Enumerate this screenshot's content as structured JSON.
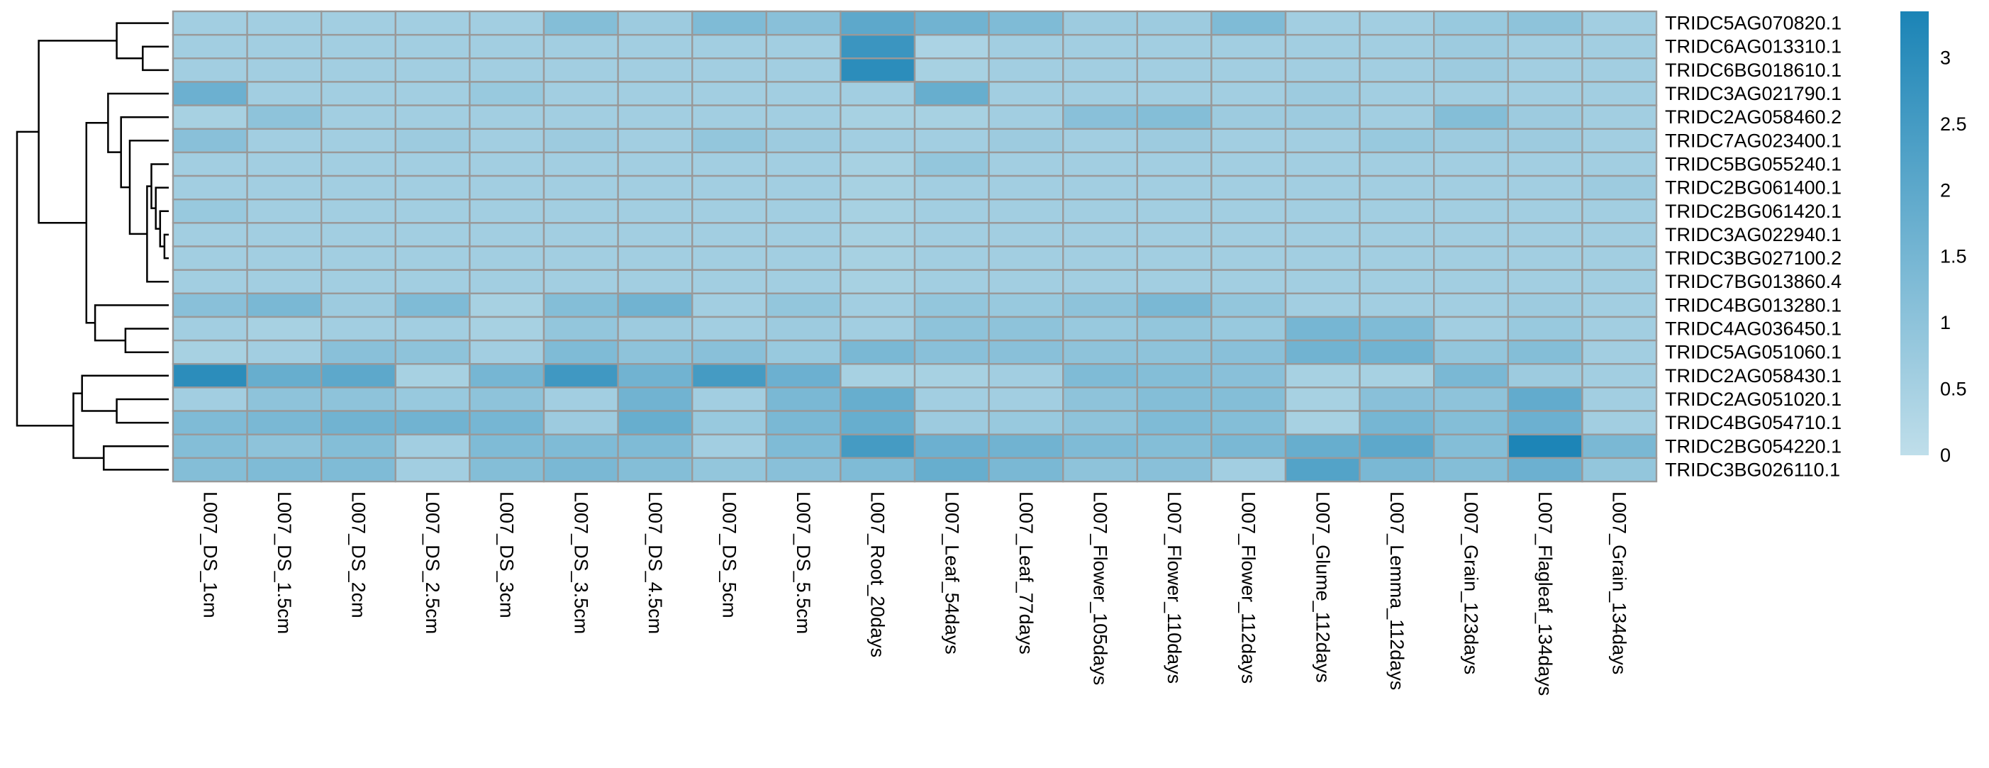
{
  "chart_data": {
    "type": "heatmap",
    "title": "",
    "xlabel": "",
    "ylabel": "",
    "columns": [
      "L007_DS_1cm",
      "L007_DS_1.5cm",
      "L007_DS_2cm",
      "L007_DS_2.5cm",
      "L007_DS_3cm",
      "L007_DS_3.5cm",
      "L007_DS_4.5cm",
      "L007_DS_5cm",
      "L007_DS_5.5cm",
      "L007_Root_20days",
      "L007_Leaf_54days",
      "L007_Leaf_77days",
      "L007_Flower_105days",
      "L007_Flower_110days",
      "L007_Flower_112days",
      "L007_Glume_112days",
      "L007_Lemma_112days",
      "L007_Grain_123days",
      "L007_Flagleaf_134days",
      "L007_Grain_134days"
    ],
    "rows": [
      "TRIDC5AG070820.1",
      "TRIDC6AG013310.1",
      "TRIDC6BG018610.1",
      "TRIDC3AG021790.1",
      "TRIDC2AG058460.2",
      "TRIDC7AG023400.1",
      "TRIDC5BG055240.1",
      "TRIDC2BG061400.1",
      "TRIDC2BG061420.1",
      "TRIDC3AG022940.1",
      "TRIDC3BG027100.2",
      "TRIDC7BG013860.4",
      "TRIDC4BG013280.1",
      "TRIDC4AG036450.1",
      "TRIDC5AG051060.1",
      "TRIDC2AG058430.1",
      "TRIDC2AG051020.1",
      "TRIDC4BG054710.1",
      "TRIDC2BG054220.1",
      "TRIDC3BG026110.1"
    ],
    "values": [
      [
        0.6,
        0.6,
        0.6,
        0.6,
        0.6,
        1.2,
        0.7,
        1.3,
        1.1,
        2.0,
        1.6,
        1.3,
        0.7,
        0.7,
        1.3,
        0.6,
        0.6,
        0.8,
        1.0,
        0.6
      ],
      [
        0.6,
        0.6,
        0.6,
        0.6,
        0.6,
        0.6,
        0.6,
        0.6,
        0.6,
        2.7,
        0.4,
        0.6,
        0.6,
        0.6,
        0.6,
        0.6,
        0.6,
        0.7,
        0.6,
        0.6
      ],
      [
        0.6,
        0.6,
        0.6,
        0.6,
        0.6,
        0.6,
        0.6,
        0.6,
        0.6,
        3.0,
        0.5,
        0.6,
        0.6,
        0.6,
        0.6,
        0.6,
        0.6,
        0.7,
        0.6,
        0.6
      ],
      [
        1.7,
        0.6,
        0.6,
        0.6,
        0.8,
        0.6,
        0.6,
        0.6,
        0.6,
        0.6,
        1.8,
        0.6,
        0.6,
        0.6,
        0.6,
        0.7,
        0.6,
        0.6,
        0.6,
        0.6
      ],
      [
        0.5,
        1.0,
        0.6,
        0.6,
        0.6,
        0.6,
        0.6,
        0.6,
        0.6,
        0.5,
        0.5,
        0.6,
        1.1,
        1.2,
        0.7,
        0.7,
        0.6,
        1.2,
        0.7,
        0.6
      ],
      [
        1.1,
        0.6,
        0.6,
        0.7,
        0.6,
        0.7,
        0.6,
        0.9,
        0.7,
        0.6,
        0.6,
        0.7,
        0.6,
        0.7,
        0.6,
        0.6,
        0.8,
        0.7,
        0.7,
        0.6
      ],
      [
        0.6,
        0.6,
        0.6,
        0.6,
        0.6,
        0.6,
        0.6,
        0.6,
        0.6,
        0.5,
        0.9,
        0.6,
        0.6,
        0.6,
        0.6,
        0.6,
        0.6,
        0.6,
        0.6,
        0.6
      ],
      [
        0.6,
        0.6,
        0.6,
        0.6,
        0.6,
        0.6,
        0.6,
        0.6,
        0.6,
        0.5,
        0.6,
        0.6,
        0.6,
        0.6,
        0.6,
        0.6,
        0.6,
        0.6,
        0.6,
        0.7
      ],
      [
        0.8,
        0.6,
        0.6,
        0.6,
        0.6,
        0.6,
        0.6,
        0.6,
        0.6,
        0.5,
        0.6,
        0.6,
        0.6,
        0.6,
        0.6,
        0.6,
        0.6,
        0.6,
        0.6,
        0.6
      ],
      [
        0.6,
        0.6,
        0.6,
        0.6,
        0.6,
        0.6,
        0.6,
        0.6,
        0.6,
        0.5,
        0.6,
        0.6,
        0.6,
        0.6,
        0.6,
        0.6,
        0.6,
        0.6,
        0.6,
        0.6
      ],
      [
        0.6,
        0.6,
        0.6,
        0.6,
        0.6,
        0.6,
        0.6,
        0.6,
        0.6,
        0.5,
        0.6,
        0.6,
        0.6,
        0.6,
        0.6,
        0.6,
        0.6,
        0.6,
        0.6,
        0.6
      ],
      [
        0.6,
        0.6,
        0.6,
        0.6,
        0.6,
        0.6,
        0.6,
        0.6,
        0.6,
        0.5,
        0.6,
        0.6,
        0.6,
        0.6,
        0.6,
        0.6,
        0.6,
        0.6,
        0.6,
        0.6
      ],
      [
        1.1,
        1.4,
        0.7,
        1.3,
        0.5,
        1.2,
        1.6,
        0.6,
        0.9,
        0.6,
        0.9,
        0.8,
        1.0,
        1.4,
        0.9,
        0.6,
        0.6,
        0.6,
        0.7,
        0.6
      ],
      [
        0.6,
        0.5,
        0.6,
        0.6,
        0.5,
        0.9,
        0.7,
        0.6,
        0.7,
        0.6,
        1.0,
        1.0,
        0.8,
        0.9,
        0.8,
        1.5,
        1.3,
        0.6,
        0.8,
        0.6
      ],
      [
        0.5,
        0.6,
        1.1,
        1.0,
        0.6,
        1.3,
        1.0,
        1.1,
        0.8,
        1.4,
        1.1,
        1.1,
        1.0,
        1.0,
        1.1,
        1.6,
        1.6,
        0.9,
        1.2,
        0.6
      ],
      [
        3.0,
        1.8,
        2.0,
        0.5,
        1.5,
        2.6,
        1.6,
        2.5,
        1.7,
        0.5,
        0.5,
        0.6,
        1.3,
        1.2,
        1.1,
        0.5,
        0.5,
        1.4,
        0.7,
        0.6
      ],
      [
        0.6,
        1.0,
        1.0,
        0.8,
        1.0,
        0.6,
        1.6,
        0.6,
        1.4,
        1.8,
        0.6,
        0.6,
        1.0,
        1.2,
        1.2,
        0.5,
        1.1,
        1.0,
        1.9,
        0.6
      ],
      [
        1.3,
        1.4,
        1.6,
        1.6,
        1.5,
        0.7,
        1.8,
        0.8,
        1.4,
        1.8,
        0.7,
        0.8,
        1.0,
        1.3,
        1.2,
        0.5,
        1.5,
        1.2,
        1.7,
        0.6
      ],
      [
        1.2,
        1.0,
        1.2,
        0.6,
        1.3,
        1.3,
        1.3,
        0.6,
        1.3,
        2.5,
        1.7,
        1.6,
        1.3,
        1.2,
        1.4,
        1.8,
        2.0,
        1.2,
        3.3,
        1.4
      ],
      [
        1.2,
        1.3,
        1.3,
        0.6,
        1.2,
        1.4,
        1.2,
        0.9,
        1.1,
        1.3,
        1.8,
        1.4,
        1.0,
        1.1,
        0.6,
        2.2,
        1.4,
        1.2,
        1.7,
        0.9
      ]
    ],
    "color_scale": {
      "min": 0,
      "max": 3.35,
      "low_color": "#bfdeea",
      "high_color": "#1b84b6"
    },
    "legend": {
      "placement": "right",
      "ticks": [
        0,
        0.5,
        1,
        1.5,
        2,
        2.5,
        3
      ],
      "tick_labels": [
        "0",
        "0.5",
        "1",
        "1.5",
        "2",
        "2.5",
        "3"
      ]
    },
    "cell_border_color": "#999999",
    "row_dendrogram": {
      "placement": "left",
      "merges": [
        {
          "a": 1,
          "b": 2,
          "height": 0.06
        },
        {
          "a": 0,
          "b": "m0",
          "height": 0.12
        },
        {
          "a": 9,
          "b": 10,
          "height": 0.01
        },
        {
          "a": 8,
          "b": "m2",
          "height": 0.02
        },
        {
          "a": 7,
          "b": "m3",
          "height": 0.03
        },
        {
          "a": 6,
          "b": "m4",
          "height": 0.04
        },
        {
          "a": 11,
          "b": "m5",
          "height": 0.05
        },
        {
          "a": 5,
          "b": "m6",
          "height": 0.09
        },
        {
          "a": 4,
          "b": "m7",
          "height": 0.11
        },
        {
          "a": 3,
          "b": "m8",
          "height": 0.14
        },
        {
          "a": 13,
          "b": 14,
          "height": 0.1
        },
        {
          "a": 12,
          "b": "m10",
          "height": 0.17
        },
        {
          "a": "m9",
          "b": "m11",
          "height": 0.19
        },
        {
          "a": "m1",
          "b": "m12",
          "height": 0.3
        },
        {
          "a": 16,
          "b": 17,
          "height": 0.12
        },
        {
          "a": 15,
          "b": "m14",
          "height": 0.2
        },
        {
          "a": 18,
          "b": 19,
          "height": 0.15
        },
        {
          "a": "m15",
          "b": "m16",
          "height": 0.22
        },
        {
          "a": "m13",
          "b": "m17",
          "height": 0.35
        }
      ]
    }
  }
}
